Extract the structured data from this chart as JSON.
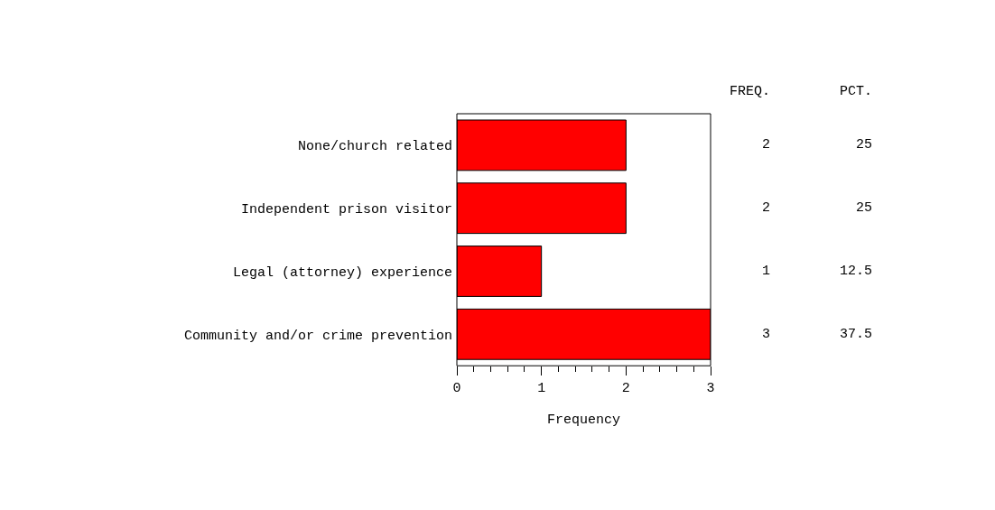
{
  "chart_data": {
    "type": "bar",
    "orientation": "horizontal",
    "xlabel": "Frequency",
    "categories": [
      "None/church related",
      "Independent prison visitor",
      "Legal (attorney) experience",
      "Community and/or crime prevention"
    ],
    "values": [
      2,
      2,
      1,
      3
    ],
    "color": "#ff0000",
    "data_labels": true,
    "xlim": [
      0,
      3
    ],
    "xticks": [
      0,
      {
        "value": 0.2,
        "label": null
      },
      {
        "value": 0.4,
        "label": null
      },
      {
        "value": 0.6,
        "label": null
      },
      {
        "value": 0.8,
        "label": null
      },
      1,
      {
        "value": 1.2,
        "label": null
      },
      {
        "value": 1.4,
        "label": null
      },
      {
        "value": 1.6,
        "label": null
      },
      {
        "value": 1.8,
        "label": null
      },
      2,
      {
        "value": 2.2,
        "label": null
      },
      {
        "value": 2.4,
        "label": null
      },
      {
        "value": 2.6,
        "label": null
      },
      {
        "value": 2.8,
        "label": null
      },
      3
    ],
    "annotations": [
      "FREQ.",
      "PCT.",
      "25",
      "25",
      "12.5",
      "37.5"
    ]
  }
}
